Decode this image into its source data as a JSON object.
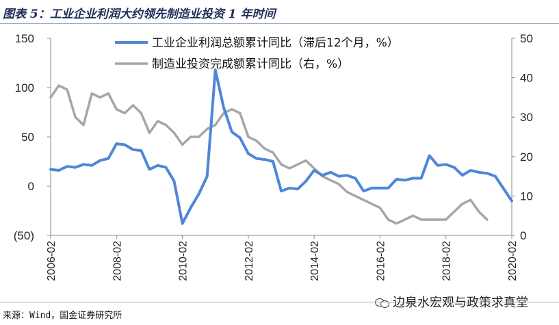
{
  "title": "图表 5：工业企业利润大约领先制造业投资 1 年时间",
  "source": "来源：Wind，国金证券研究所",
  "watermark": "边泉水宏观与政策求真堂",
  "colors": {
    "profit": "#4f86d9",
    "invest": "#a6a6a6",
    "negative": "#cc0000",
    "axis": "#888888"
  },
  "chart_data": {
    "type": "line",
    "y_left": {
      "min": -50,
      "max": 150,
      "ticks": [
        150,
        100,
        50,
        0,
        -50
      ],
      "tick_labels": [
        "150",
        "100",
        "50",
        "0",
        "(50)"
      ]
    },
    "y_right": {
      "min": 0,
      "max": 50,
      "ticks": [
        50,
        40,
        30,
        20,
        10,
        0
      ],
      "tick_labels": [
        "50",
        "40",
        "30",
        "20",
        "10",
        "0"
      ]
    },
    "x_ticks": [
      "2006-02",
      "2008-02",
      "2010-02",
      "2012-02",
      "2014-02",
      "2016-02",
      "2018-02",
      "2020-02"
    ],
    "x_range": [
      "2006-02",
      "2020-02"
    ],
    "legend": "top-center",
    "series": [
      {
        "name": "工业企业利润总额累计同比（滞后12个月，%）",
        "axis": "left",
        "points": [
          [
            "2006-02",
            17
          ],
          [
            "2006-05",
            16
          ],
          [
            "2006-08",
            20
          ],
          [
            "2006-11",
            19
          ],
          [
            "2007-02",
            22
          ],
          [
            "2007-05",
            21
          ],
          [
            "2007-08",
            26
          ],
          [
            "2007-11",
            28
          ],
          [
            "2008-02",
            43
          ],
          [
            "2008-05",
            42
          ],
          [
            "2008-08",
            37
          ],
          [
            "2008-11",
            36
          ],
          [
            "2009-02",
            17
          ],
          [
            "2009-05",
            21
          ],
          [
            "2009-08",
            19
          ],
          [
            "2009-11",
            5
          ],
          [
            "2010-02",
            -38
          ],
          [
            "2010-05",
            -22
          ],
          [
            "2010-08",
            -8
          ],
          [
            "2010-11",
            10
          ],
          [
            "2011-02",
            118
          ],
          [
            "2011-05",
            80
          ],
          [
            "2011-08",
            55
          ],
          [
            "2011-11",
            49
          ],
          [
            "2012-02",
            33
          ],
          [
            "2012-05",
            28
          ],
          [
            "2012-08",
            27
          ],
          [
            "2012-11",
            25
          ],
          [
            "2013-02",
            -5
          ],
          [
            "2013-05",
            -2
          ],
          [
            "2013-08",
            -3
          ],
          [
            "2013-11",
            5
          ],
          [
            "2014-02",
            16
          ],
          [
            "2014-05",
            11
          ],
          [
            "2014-08",
            14
          ],
          [
            "2014-11",
            10
          ],
          [
            "2015-02",
            11
          ],
          [
            "2015-05",
            8
          ],
          [
            "2015-08",
            -5
          ],
          [
            "2015-11",
            -2
          ],
          [
            "2016-02",
            -2
          ],
          [
            "2016-05",
            -2
          ],
          [
            "2016-08",
            7
          ],
          [
            "2016-11",
            6
          ],
          [
            "2017-02",
            8
          ],
          [
            "2017-05",
            8
          ],
          [
            "2017-08",
            31
          ],
          [
            "2017-11",
            21
          ],
          [
            "2018-02",
            22
          ],
          [
            "2018-05",
            19
          ],
          [
            "2018-08",
            11
          ],
          [
            "2018-11",
            16
          ],
          [
            "2019-02",
            14
          ],
          [
            "2019-05",
            13
          ],
          [
            "2019-08",
            10
          ],
          [
            "2020-02",
            -15
          ]
        ]
      },
      {
        "name": "制造业投资完成额累计同比（右，%）",
        "axis": "right",
        "points": [
          [
            "2006-02",
            35
          ],
          [
            "2006-05",
            38
          ],
          [
            "2006-08",
            37
          ],
          [
            "2006-11",
            30
          ],
          [
            "2007-02",
            28
          ],
          [
            "2007-05",
            36
          ],
          [
            "2007-08",
            35
          ],
          [
            "2007-11",
            36
          ],
          [
            "2008-02",
            32
          ],
          [
            "2008-05",
            31
          ],
          [
            "2008-08",
            33
          ],
          [
            "2008-11",
            31
          ],
          [
            "2009-02",
            26
          ],
          [
            "2009-05",
            29
          ],
          [
            "2009-08",
            28
          ],
          [
            "2009-11",
            26
          ],
          [
            "2010-02",
            23
          ],
          [
            "2010-05",
            25
          ],
          [
            "2010-08",
            25
          ],
          [
            "2010-11",
            27
          ],
          [
            "2011-02",
            28
          ],
          [
            "2011-05",
            31
          ],
          [
            "2011-08",
            32
          ],
          [
            "2011-11",
            31
          ],
          [
            "2012-02",
            25
          ],
          [
            "2012-05",
            24
          ],
          [
            "2012-08",
            22
          ],
          [
            "2012-11",
            21
          ],
          [
            "2013-02",
            18
          ],
          [
            "2013-05",
            17
          ],
          [
            "2013-08",
            18
          ],
          [
            "2013-11",
            19
          ],
          [
            "2014-02",
            17
          ],
          [
            "2014-05",
            15
          ],
          [
            "2014-08",
            14
          ],
          [
            "2014-11",
            13
          ],
          [
            "2015-02",
            11
          ],
          [
            "2015-05",
            10
          ],
          [
            "2015-08",
            9
          ],
          [
            "2015-11",
            8
          ],
          [
            "2016-02",
            7
          ],
          [
            "2016-05",
            4
          ],
          [
            "2016-08",
            3
          ],
          [
            "2016-11",
            4
          ],
          [
            "2017-02",
            5
          ],
          [
            "2017-05",
            4
          ],
          [
            "2017-08",
            4
          ],
          [
            "2017-11",
            4
          ],
          [
            "2018-02",
            4
          ],
          [
            "2018-05",
            6
          ],
          [
            "2018-08",
            8
          ],
          [
            "2018-11",
            9
          ],
          [
            "2019-02",
            6
          ],
          [
            "2019-05",
            4
          ]
        ]
      }
    ]
  }
}
